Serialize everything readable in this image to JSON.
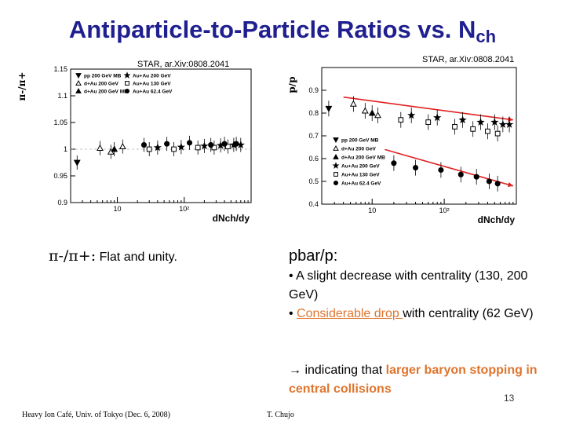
{
  "title": {
    "main": "Antiparticle-to-Particle Ratios vs. N",
    "sub": "ch"
  },
  "references": {
    "left": "STAR, ar.Xiv:0808.2041",
    "right": "STAR, ar.Xiv:0808.2041"
  },
  "chart_data": [
    {
      "type": "scatter",
      "ylabel": "π-/π+",
      "xlabel": "dNch/dy",
      "log_x": true,
      "xlim": [
        2,
        1000
      ],
      "ylim": [
        0.9,
        1.15
      ],
      "y_ticks": [
        "0.9",
        "0.95",
        "1",
        "1.05",
        "1.1",
        "1.15"
      ],
      "x_ticks": [
        "10",
        "10²"
      ],
      "legend": {
        "placement": "top-left",
        "entries": [
          "pp 200 GeV MB",
          "d+Au 200 GeV",
          "d+Au 200 GeV MB",
          "Au+Au 200 GeV",
          "Au+Au 130 GeV",
          "Au+Au 62.4 GeV"
        ]
      },
      "series": [
        {
          "name": "pp 200 GeV MB",
          "marker": "triangle-down-filled",
          "x": [
            2.5
          ],
          "y": [
            0.975
          ]
        },
        {
          "name": "d+Au 200 GeV",
          "marker": "triangle-open",
          "x": [
            5.5,
            8,
            12
          ],
          "y": [
            1.002,
            0.995,
            1.005
          ]
        },
        {
          "name": "d+Au 200 GeV MB",
          "marker": "triangle-filled",
          "x": [
            9
          ],
          "y": [
            1.0
          ]
        },
        {
          "name": "Au+Au 200 GeV",
          "marker": "star-filled",
          "x": [
            40,
            90,
            200,
            350,
            550,
            700
          ],
          "y": [
            1.003,
            1.004,
            1.006,
            1.007,
            1.008,
            1.008
          ]
        },
        {
          "name": "Au+Au 130 GeV",
          "marker": "square-open",
          "x": [
            30,
            70,
            160,
            280,
            450
          ],
          "y": [
            1.0,
            1.0,
            1.003,
            1.003,
            1.005
          ]
        },
        {
          "name": "Au+Au 62.4 GeV",
          "marker": "circle-filled",
          "x": [
            25,
            55,
            120,
            250,
            400,
            600
          ],
          "y": [
            1.008,
            1.01,
            1.012,
            1.008,
            1.01,
            1.01
          ]
        }
      ]
    },
    {
      "type": "scatter",
      "ylabel": "p̄/p",
      "xlabel": "dNch/dy",
      "log_x": true,
      "xlim": [
        2,
        1000
      ],
      "ylim": [
        0.4,
        1.0
      ],
      "y_ticks": [
        "0.4",
        "0.5",
        "0.6",
        "0.7",
        "0.8",
        "0.9"
      ],
      "x_ticks": [
        "10",
        "10²"
      ],
      "legend": {
        "placement": "bottom-left",
        "entries": [
          "pp 200 GeV MB",
          "d+Au 200 GeV",
          "d+Au 200 GeV MB",
          "Au+Au 200 GeV",
          "Au+Au 130 GeV",
          "Au+Au 62.4 GeV"
        ]
      },
      "trend_color": "#e02020",
      "series": [
        {
          "name": "pp 200 GeV MB",
          "marker": "triangle-down-filled",
          "x": [
            2.5
          ],
          "y": [
            0.82
          ]
        },
        {
          "name": "d+Au 200 GeV",
          "marker": "triangle-open",
          "x": [
            5.5,
            8,
            12
          ],
          "y": [
            0.84,
            0.81,
            0.79
          ]
        },
        {
          "name": "d+Au 200 GeV MB",
          "marker": "triangle-filled",
          "x": [
            10
          ],
          "y": [
            0.8
          ]
        },
        {
          "name": "Au+Au 200 GeV",
          "marker": "star-filled",
          "x": [
            35,
            80,
            180,
            320,
            500,
            650,
            800
          ],
          "y": [
            0.79,
            0.78,
            0.77,
            0.76,
            0.76,
            0.75,
            0.75
          ]
        },
        {
          "name": "Au+Au 130 GeV",
          "marker": "square-open",
          "x": [
            25,
            60,
            140,
            250,
            400,
            550
          ],
          "y": [
            0.77,
            0.76,
            0.74,
            0.73,
            0.72,
            0.71
          ]
        },
        {
          "name": "Au+Au 62.4 GeV",
          "marker": "circle-filled",
          "x": [
            20,
            40,
            90,
            170,
            280,
            420,
            550
          ],
          "y": [
            0.58,
            0.56,
            0.55,
            0.53,
            0.52,
            0.5,
            0.49
          ]
        }
      ]
    }
  ],
  "left_note": {
    "symbols": "π-/π+:",
    "text": "Flat and unity."
  },
  "right_note": {
    "title": "pbar/p:",
    "b1": "• A slight decrease with centrality (130, 200 GeV)",
    "b2_prefix": "• ",
    "b2_link": "Considerable drop ",
    "b2_rest": "with centrality (62 GeV)"
  },
  "conclusion": {
    "arrow": "→",
    "part1": " indicating that ",
    "part2": "larger baryon stopping in central  collisions"
  },
  "page_number": "13",
  "footer": {
    "left": "Heavy Ion Café, Univ. of Tokyo (Dec. 6, 2008)",
    "right": "T. Chujo"
  }
}
